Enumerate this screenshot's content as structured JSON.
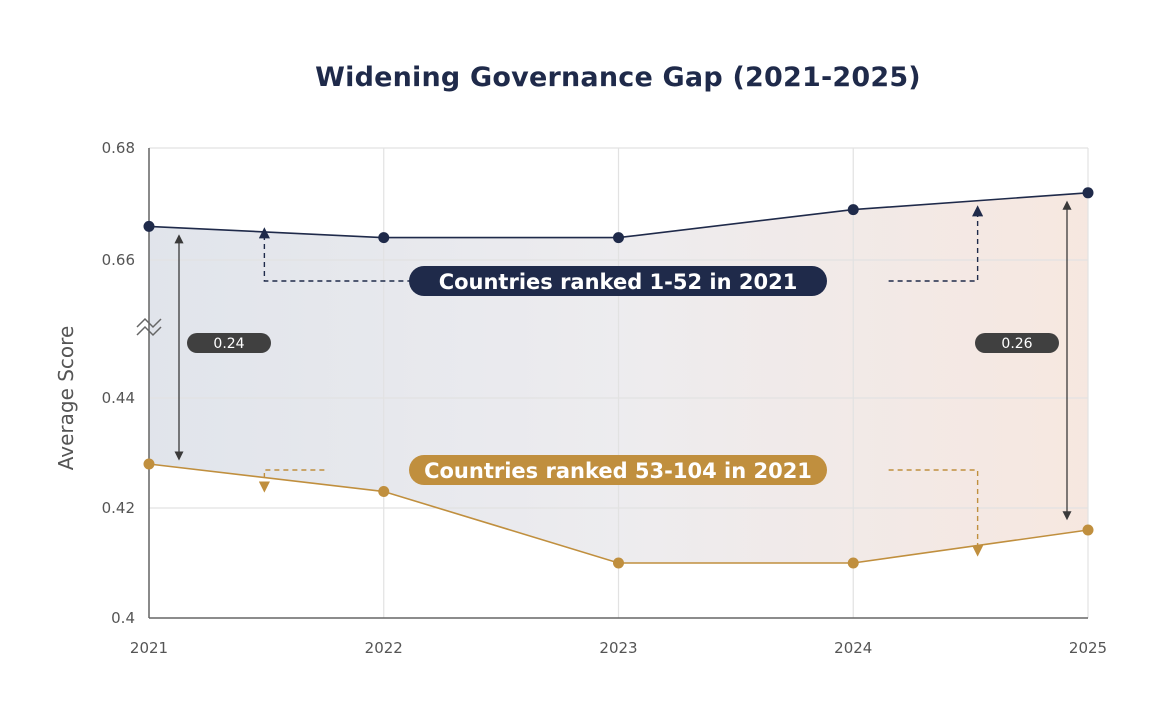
{
  "chart_data": {
    "type": "line",
    "title": "Widening Governance Gap (2021-2025)",
    "ylabel": "Average Score",
    "xlabel": "",
    "x": [
      "2021",
      "2022",
      "2023",
      "2024",
      "2025"
    ],
    "y_ticks_lower": [
      "0.4",
      "0.42",
      "0.44"
    ],
    "y_ticks_upper": [
      "0.66",
      "0.68"
    ],
    "ylim_lower": [
      0.4,
      0.445
    ],
    "ylim_upper": [
      0.655,
      0.68
    ],
    "axis_break": true,
    "grid": true,
    "series": [
      {
        "name": "Countries ranked 1-52 in 2021",
        "color": "#1f2a4a",
        "values": [
          0.666,
          0.664,
          0.664,
          0.669,
          0.672
        ]
      },
      {
        "name": "Countries ranked 53-104 in 2021",
        "color": "#c08f3e",
        "values": [
          0.428,
          0.423,
          0.41,
          0.41,
          0.416
        ]
      }
    ],
    "annotations": [
      {
        "label": "0.24",
        "x": "2021"
      },
      {
        "label": "0.26",
        "x": "2025"
      }
    ]
  }
}
